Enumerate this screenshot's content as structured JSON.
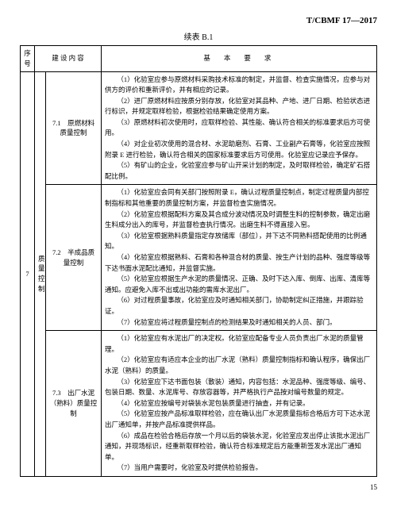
{
  "header_code": "T/CBMF 17—2017",
  "table_title": "续表 B.1",
  "columns": {
    "seq": "序号",
    "content": "建 设 内 容",
    "req": "基　本　要　求"
  },
  "row_seq": "7",
  "row_cat1": "质量控制",
  "sections": {
    "s1": {
      "title": "7.1　原燃材料质量控制",
      "items": [
        "（1）化验室应参与原燃材料采购技术标准的制定，并监督、检查实施情况，应参与对供方的评价和重新评价，并有相应的记录。",
        "（2）进厂原燃材料应按质分别存放，化验室对其品种、产地、进厂日期、检验状态进行标识，并规定取样检验，根据检验结果确定使用方案。",
        "（3）原燃材料初次使用时，应取样检验、其性能、确认符合相关的标准要求后方可使用。",
        "（4）对企业初次使用的混合材、水泥助磨剂、石膏、工业副产石膏等，化验室应按照附录 E 进行检验，确认符合相关的国家标准要求后方可使用。化验室应记录应予保存。",
        "（5）有矿山的企业，化验室应参与矿山开采计划的制定，及时取样检验，确定矿石搭配比例。"
      ]
    },
    "s2": {
      "title": "7.2　半成品质量控制",
      "items": [
        "（1）化验室应会同有关部门按照附录 E，确认过程质量控制点，制定过程质量内部控制指标和其他重要的质量控制方案，并监督检查实施情况。",
        "（2）化验室应根据配料方案及其合成分波动情况及时调整生料的控制参数，确定出磨生料成分出入的库号，并监督检查执行情况。出磨生料不得直接入窑。",
        "（3）化验室根据熟料质量指定存放储库（部位），并下达不同熟料搭配使用的比例通知。",
        "（4）化验室应根据熟料、石膏和各种混合材的质量、按生产计划的品种、强度等级等下达书面水泥配比通知，并监督实施。",
        "（5）化验室应根据生产水泥的质量情况、正确、及时下达入库、倒库、出库、清库等通知。应避免入库不出或出功能的需库水泥出厂。",
        "（6）对过程质量事故，化验室应及时通知相关部门，协助制定纠正措施，并跟踪验证。",
        "（7）化验室应将过程质量控制点的检测结果及时通知相关的人员、部门。"
      ]
    },
    "s3": {
      "title": "7.3　出厂水泥（熟料）质量控制",
      "items": [
        "（1）化验室应有水泥出厂的决定权。化验室应配备专业人员负责出厂水泥的质量管理。",
        "（2）化验室应有适应本企业的出厂水泥（熟料）质量控制指标和确认程序，确保出厂水泥（熟料）的质量。",
        "（3）化验室应下达书面包装（散装）通知，内容包括：水泥品种、强度等级、编号、包装日期、数量、水泥库号、存放容器等，并严格执行产品按对编号数量的规定。",
        "（4）化验室应按编号对袋装水泥包装质量进行抽查，并有记录。",
        "（5）化验室应按产品标准取样检验，应在确认出厂水泥质量指标合格后方可下达水泥出厂通知单，并按产品标准提供样品。",
        "（6）成品在检验合格后存放一个月以后的袋装水泥，化验室应发出停止该批水泥出厂通知，并现场标识，经重新取样检验，确认符合标准规定后方能重新签发水泥出厂通知单。",
        "（7）当用户需要时，化验室及时提供检验报告。"
      ]
    }
  },
  "page_number": "15"
}
